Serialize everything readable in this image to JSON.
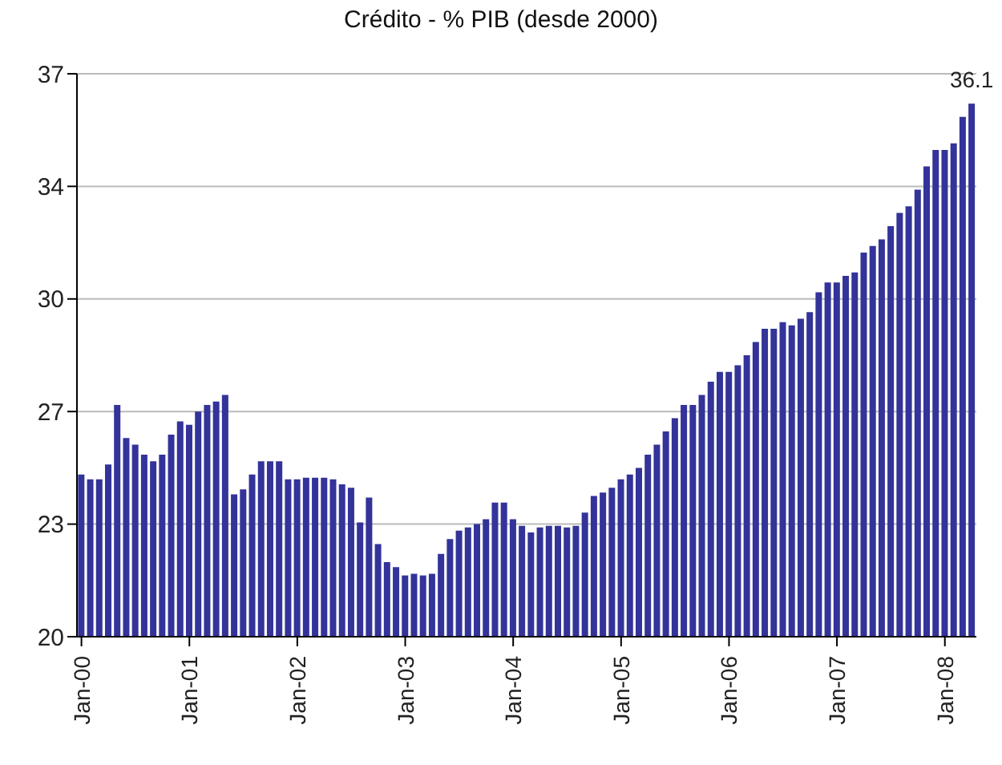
{
  "chart_data": {
    "type": "bar",
    "title": "Crédito - % PIB (desde 2000)",
    "categories": [
      "Jan-00",
      null,
      null,
      null,
      null,
      null,
      null,
      null,
      null,
      null,
      null,
      null,
      "Jan-01",
      null,
      null,
      null,
      null,
      null,
      null,
      null,
      null,
      null,
      null,
      null,
      "Jan-02",
      null,
      null,
      null,
      null,
      null,
      null,
      null,
      null,
      null,
      null,
      null,
      "Jan-03",
      null,
      null,
      null,
      null,
      null,
      null,
      null,
      null,
      null,
      null,
      null,
      "Jan-04",
      null,
      null,
      null,
      null,
      null,
      null,
      null,
      null,
      null,
      null,
      null,
      "Jan-05",
      null,
      null,
      null,
      null,
      null,
      null,
      null,
      null,
      null,
      null,
      null,
      "Jan-06",
      null,
      null,
      null,
      null,
      null,
      null,
      null,
      null,
      null,
      null,
      null,
      "Jan-07",
      null,
      null,
      null,
      null,
      null,
      null,
      null,
      null,
      null,
      null,
      null,
      "Jan-08",
      null,
      null,
      null
    ],
    "values": [
      24.9,
      24.75,
      24.75,
      25.2,
      27.0,
      26.0,
      25.8,
      25.5,
      25.3,
      25.5,
      26.1,
      26.5,
      26.4,
      26.8,
      27.0,
      27.1,
      27.3,
      24.3,
      24.45,
      24.9,
      25.3,
      25.3,
      25.3,
      24.75,
      24.75,
      24.8,
      24.8,
      24.8,
      24.75,
      24.6,
      24.5,
      23.45,
      24.2,
      22.8,
      22.25,
      22.1,
      21.85,
      21.9,
      21.85,
      21.9,
      22.5,
      22.95,
      23.2,
      23.3,
      23.4,
      23.55,
      24.05,
      24.05,
      23.55,
      23.35,
      23.15,
      23.3,
      23.35,
      23.35,
      23.3,
      23.35,
      23.75,
      24.25,
      24.35,
      24.5,
      24.75,
      24.9,
      25.1,
      25.5,
      25.8,
      26.2,
      26.6,
      27.0,
      27.0,
      27.3,
      27.7,
      28.0,
      28.0,
      28.2,
      28.5,
      28.9,
      29.3,
      29.3,
      29.5,
      29.4,
      29.6,
      29.8,
      30.4,
      30.7,
      30.7,
      30.9,
      31.0,
      31.6,
      31.8,
      32.0,
      32.4,
      32.8,
      33.0,
      33.5,
      34.2,
      34.7,
      34.7,
      34.9,
      35.7,
      36.1
    ],
    "value_labels": [
      null,
      null,
      null,
      null,
      null,
      null,
      null,
      null,
      null,
      null,
      null,
      null,
      null,
      null,
      null,
      null,
      null,
      null,
      null,
      null,
      null,
      null,
      null,
      null,
      null,
      null,
      null,
      null,
      null,
      null,
      null,
      null,
      null,
      null,
      null,
      null,
      null,
      null,
      null,
      null,
      null,
      null,
      null,
      null,
      null,
      null,
      null,
      null,
      null,
      null,
      null,
      null,
      null,
      null,
      null,
      null,
      null,
      null,
      null,
      null,
      null,
      null,
      null,
      null,
      null,
      null,
      null,
      null,
      null,
      null,
      null,
      null,
      null,
      null,
      null,
      null,
      null,
      null,
      null,
      null,
      null,
      null,
      null,
      null,
      null,
      null,
      null,
      null,
      null,
      null,
      null,
      null,
      null,
      null,
      null,
      null,
      null,
      null,
      null,
      "36.1"
    ],
    "color": "#333399",
    "ylim": [
      20,
      37
    ],
    "yticks": [
      20,
      {
        "value": 23.4,
        "label": "23"
      },
      {
        "value": 26.8,
        "label": "27"
      },
      {
        "value": 30.2,
        "label": "30"
      },
      {
        "value": 33.6,
        "label": "34"
      },
      37
    ],
    "grid": "y"
  }
}
